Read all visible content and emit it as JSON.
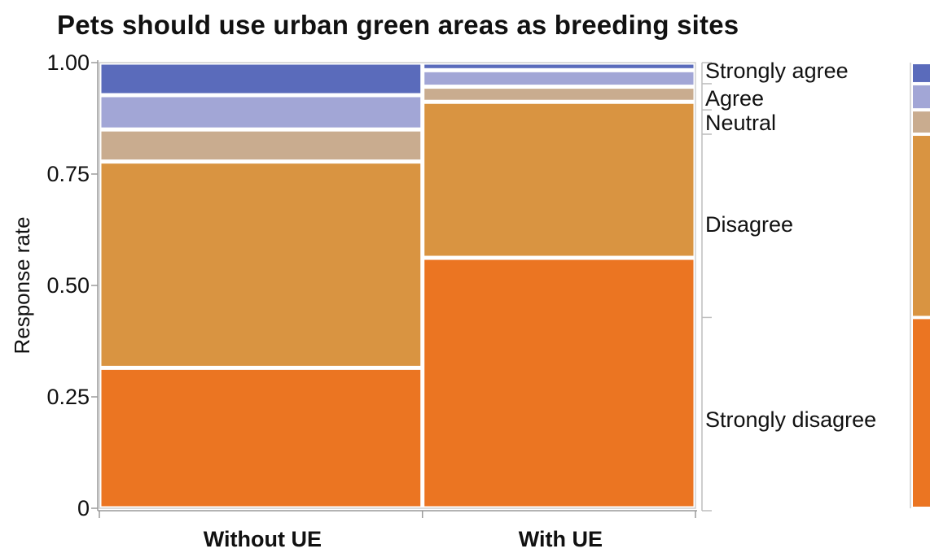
{
  "chart_data": {
    "type": "mosaic",
    "title": "Pets should use urban green areas as breeding sites",
    "xlabel": "",
    "ylabel": "Response rate",
    "ylim": [
      0,
      1
    ],
    "yticks": [
      "0",
      "0.25",
      "0.50",
      "0.75",
      "1.00"
    ],
    "categories": [
      "Without UE",
      "With UE"
    ],
    "category_widths": [
      0.542,
      0.458
    ],
    "series": [
      {
        "name": "Strongly disagree",
        "color": "#EB7522",
        "values": [
          0.315,
          0.562
        ]
      },
      {
        "name": "Disagree",
        "color": "#D99441",
        "values": [
          0.463,
          0.35
        ]
      },
      {
        "name": "Neutral",
        "color": "#C9AC8F",
        "values": [
          0.072,
          0.034
        ]
      },
      {
        "name": "Agree",
        "color": "#A2A6D6",
        "values": [
          0.077,
          0.037
        ]
      },
      {
        "name": "Strongly agree",
        "color": "#5A6BBB",
        "values": [
          0.073,
          0.017
        ]
      }
    ]
  }
}
